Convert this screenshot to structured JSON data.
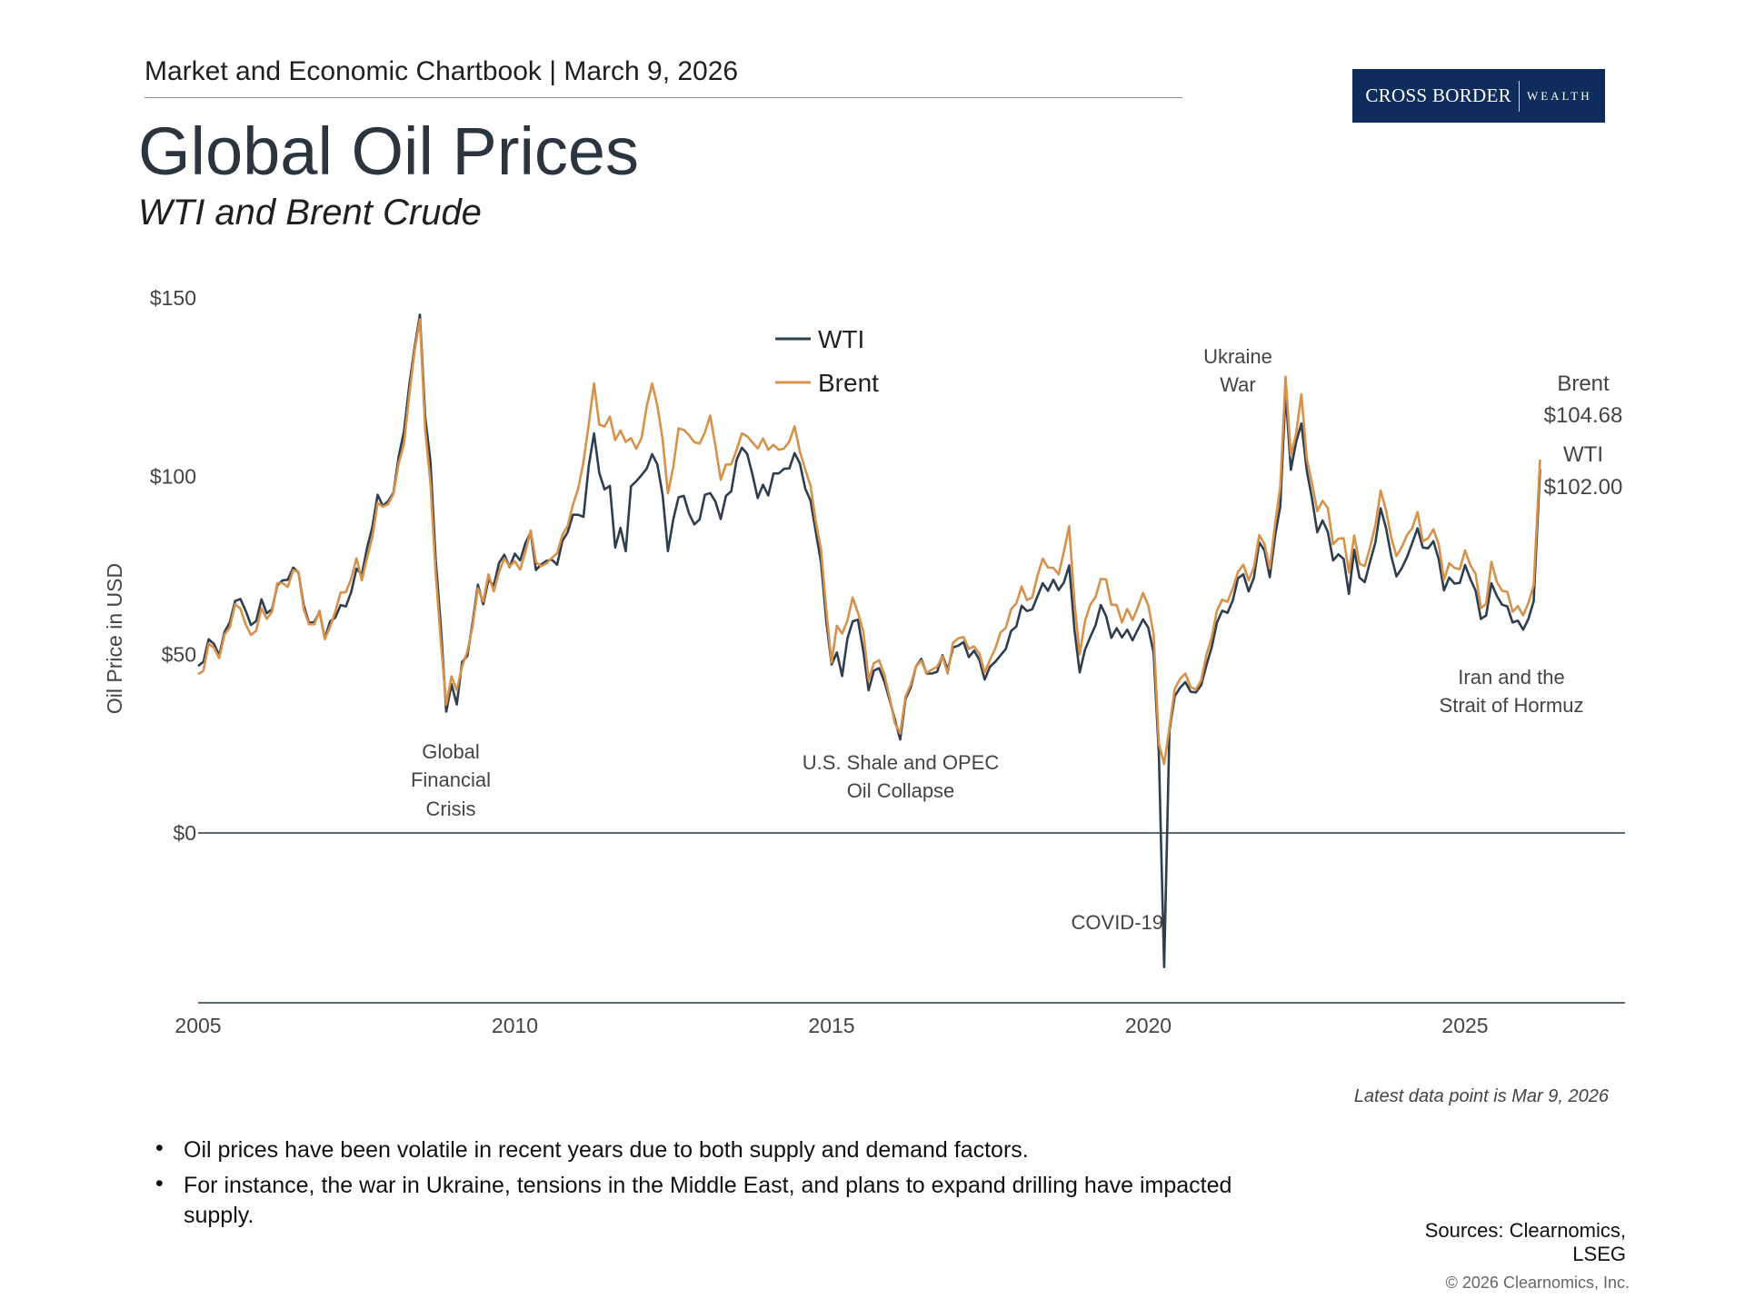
{
  "header": {
    "kicker": "Market and Economic Chartbook | March 9, 2026",
    "title": "Global Oil Prices",
    "subtitle": "WTI and Brent Crude"
  },
  "logo": {
    "text_main": "CROSS BORDER",
    "text_secondary": "WEALTH",
    "color": "#0f2d5c"
  },
  "chart_data": {
    "type": "line",
    "ylabel": "Oil Price in USD",
    "xlabel": "",
    "x_ticks": [
      "2005",
      "2010",
      "2015",
      "2020",
      "2025"
    ],
    "y_ticks": [
      "$0",
      "$50",
      "$100",
      "$150"
    ],
    "xlim": [
      2005,
      2027.6
    ],
    "ylim": [
      -47,
      150
    ],
    "grid": false,
    "legend": {
      "placement": "top-center",
      "entries": [
        "WTI",
        "Brent"
      ]
    },
    "frequency": "monthly",
    "series": [
      {
        "name": "WTI",
        "color": "#2e3e4e",
        "values_by_year": {
          "2005": [
            46.8,
            48.0,
            54.3,
            53.0,
            49.8,
            56.3,
            59.0,
            65.0,
            65.6,
            62.3,
            58.3,
            59.4
          ],
          "2006": [
            65.5,
            61.6,
            62.7,
            69.4,
            70.8,
            71.0,
            74.4,
            73.0,
            63.8,
            58.9,
            59.1,
            62.0
          ],
          "2007": [
            54.5,
            59.3,
            60.4,
            63.9,
            63.5,
            67.5,
            74.1,
            72.4,
            79.9,
            85.8,
            94.8,
            91.7
          ],
          "2008": [
            93.0,
            95.4,
            105.5,
            112.6,
            125.4,
            136.0,
            145.3,
            116.7,
            104.1,
            76.6,
            57.3,
            34.0
          ],
          "2009": [
            41.7,
            36.0,
            47.9,
            49.6,
            59.0,
            69.6,
            64.1,
            71.0,
            69.4,
            75.7,
            78.0,
            74.5
          ],
          "2010": [
            78.3,
            76.4,
            81.2,
            84.3,
            73.7,
            75.3,
            76.3,
            76.6,
            75.2,
            81.9,
            84.3,
            89.2
          ],
          "2011": [
            89.2,
            88.6,
            102.9,
            112.0,
            100.9,
            96.3,
            97.3,
            80.0,
            85.5,
            79.0,
            97.2,
            98.6
          ],
          "2012": [
            100.3,
            102.2,
            106.2,
            103.3,
            94.7,
            79.0,
            87.9,
            94.1,
            94.5,
            89.5,
            86.5,
            87.9
          ],
          "2013": [
            94.8,
            95.3,
            92.9,
            88.0,
            94.5,
            95.8,
            104.6,
            108.0,
            106.3,
            100.5,
            93.9,
            97.6
          ],
          "2014": [
            94.6,
            100.8,
            100.8,
            102.1,
            102.2,
            106.5,
            103.6,
            96.5,
            93.2,
            84.4,
            75.8,
            59.3
          ],
          "2015": [
            47.2,
            50.6,
            44.0,
            54.5,
            59.3,
            59.8,
            50.9,
            40.0,
            45.5,
            46.2,
            42.4,
            37.2
          ],
          "2016": [
            31.7,
            26.2,
            37.5,
            40.8,
            46.7,
            48.8,
            44.7,
            44.7,
            45.2,
            49.8,
            45.7,
            52.0
          ],
          "2017": [
            52.5,
            53.5,
            49.3,
            51.1,
            48.5,
            43.0,
            46.6,
            48.0,
            49.8,
            51.6,
            56.6,
            57.9
          ],
          "2018": [
            63.7,
            62.2,
            62.7,
            66.3,
            70.0,
            67.9,
            71.0,
            68.1,
            70.2,
            75.0,
            57.0,
            45.0
          ],
          "2019": [
            51.4,
            54.9,
            58.2,
            63.9,
            60.8,
            54.7,
            57.4,
            54.8,
            57.0,
            54.0,
            57.0,
            59.9
          ],
          "2020": [
            57.5,
            50.5,
            22.0,
            -37.6,
            28.6,
            38.3,
            40.7,
            42.3,
            39.6,
            39.4,
            41.4,
            47.0
          ],
          "2021": [
            52.0,
            59.0,
            62.3,
            61.7,
            65.2,
            71.4,
            72.5,
            67.7,
            71.6,
            81.5,
            79.2,
            71.7
          ],
          "2022": [
            83.2,
            91.6,
            123.7,
            101.8,
            109.6,
            114.8,
            101.6,
            93.7,
            84.3,
            87.6,
            84.4,
            76.4
          ],
          "2023": [
            78.1,
            76.8,
            67.0,
            79.4,
            71.6,
            70.3,
            76.1,
            81.4,
            91.0,
            85.6,
            77.7,
            71.9
          ],
          "2024": [
            74.2,
            77.3,
            81.3,
            85.4,
            80.0,
            79.8,
            81.8,
            76.7,
            68.0,
            71.6,
            69.9,
            70.1
          ],
          "2025": [
            75.1,
            71.2,
            67.9,
            60.0,
            61.0,
            70.0,
            66.5,
            64.0,
            63.5,
            59.0,
            59.5,
            57.0
          ],
          "2026": [
            60.0,
            65.0,
            102.0
          ]
        }
      },
      {
        "name": "Brent",
        "color": "#d6914b",
        "values_by_year": {
          "2005": [
            44.5,
            45.5,
            53.1,
            51.9,
            49.0,
            55.6,
            57.6,
            64.1,
            62.9,
            58.5,
            55.5,
            56.7
          ],
          "2006": [
            63.0,
            60.0,
            62.0,
            70.0,
            70.0,
            69.0,
            73.7,
            73.2,
            62.8,
            58.5,
            58.5,
            62.3
          ],
          "2007": [
            54.3,
            57.8,
            62.1,
            67.4,
            67.5,
            71.3,
            77.0,
            70.8,
            77.1,
            82.9,
            92.5,
            91.5
          ],
          "2008": [
            92.2,
            95.0,
            103.7,
            109.0,
            122.8,
            135.0,
            144.0,
            113.2,
            98.1,
            72.8,
            53.2,
            36.0
          ],
          "2009": [
            43.9,
            40.0,
            46.7,
            50.8,
            57.9,
            68.6,
            64.9,
            72.5,
            67.7,
            73.2,
            77.0,
            74.7
          ],
          "2010": [
            76.2,
            73.8,
            78.8,
            84.8,
            75.9,
            74.8,
            75.6,
            77.1,
            78.4,
            83.5,
            86.1,
            92.0
          ],
          "2011": [
            96.5,
            104.0,
            114.6,
            126.0,
            114.5,
            113.9,
            116.7,
            110.1,
            112.8,
            109.6,
            110.7,
            107.7
          ],
          "2012": [
            110.7,
            119.7,
            126.0,
            119.8,
            110.3,
            95.2,
            102.6,
            113.4,
            113.0,
            111.5,
            109.5,
            109.2
          ],
          "2013": [
            112.3,
            117.0,
            108.5,
            99.0,
            103.3,
            103.3,
            107.4,
            112.0,
            111.2,
            109.5,
            107.8,
            110.6
          ],
          "2014": [
            107.4,
            108.8,
            107.4,
            107.8,
            109.7,
            114.0,
            106.9,
            101.9,
            97.3,
            87.3,
            79.4,
            62.3
          ],
          "2015": [
            47.8,
            58.1,
            55.9,
            59.5,
            66.0,
            61.7,
            56.5,
            43.0,
            47.6,
            48.4,
            44.3,
            38.0
          ],
          "2016": [
            30.7,
            27.9,
            38.2,
            41.6,
            46.7,
            48.3,
            44.9,
            45.8,
            46.6,
            49.5,
            44.7,
            53.3
          ],
          "2017": [
            54.6,
            54.9,
            51.6,
            52.3,
            50.3,
            45.0,
            48.5,
            51.7,
            56.2,
            57.5,
            62.7,
            64.4
          ],
          "2018": [
            69.1,
            65.3,
            66.0,
            72.1,
            76.9,
            74.4,
            74.3,
            72.5,
            78.9,
            86.0,
            64.8,
            50.0
          ],
          "2019": [
            59.4,
            64.0,
            66.1,
            71.2,
            71.1,
            64.0,
            63.9,
            59.0,
            62.8,
            59.7,
            63.2,
            67.3
          ],
          "2020": [
            63.7,
            55.7,
            25.0,
            19.3,
            29.4,
            40.3,
            43.2,
            44.7,
            40.9,
            40.2,
            42.7,
            49.9
          ],
          "2021": [
            54.8,
            62.3,
            65.4,
            64.8,
            68.5,
            73.2,
            75.2,
            70.8,
            74.5,
            83.5,
            81.0,
            74.2
          ],
          "2022": [
            86.5,
            97.1,
            127.9,
            105.8,
            111.9,
            123.0,
            105.0,
            98.0,
            90.2,
            93.1,
            91.1,
            80.9
          ],
          "2023": [
            82.5,
            82.6,
            73.0,
            83.4,
            75.5,
            74.8,
            80.1,
            86.2,
            96.0,
            90.6,
            82.9,
            77.6
          ],
          "2024": [
            80.1,
            83.5,
            85.4,
            90.0,
            81.8,
            82.6,
            85.1,
            80.9,
            71.0,
            75.6,
            74.3,
            73.9
          ],
          "2025": [
            79.2,
            75.1,
            72.6,
            63.0,
            64.2,
            76.0,
            70.4,
            67.9,
            67.6,
            62.0,
            63.6,
            61.0
          ],
          "2026": [
            64.5,
            69.5,
            104.68
          ]
        }
      }
    ],
    "annotations": [
      {
        "lines": [
          "Global",
          "Financial",
          "Crisis"
        ]
      },
      {
        "lines": [
          "U.S. Shale and OPEC",
          "Oil Collapse"
        ]
      },
      {
        "lines": [
          "COVID-19"
        ]
      },
      {
        "lines": [
          "Ukraine",
          "War"
        ]
      },
      {
        "lines": [
          "Iran and the",
          "Strait of Hormuz"
        ]
      }
    ],
    "end_labels": {
      "brent_name": "Brent",
      "brent_value": "$104.68",
      "wti_name": "WTI",
      "wti_value": "$102.00"
    }
  },
  "footer": {
    "latest": "Latest data point is Mar 9, 2026",
    "bullets": [
      "Oil prices have been volatile in recent years due to both supply and demand factors.",
      "For instance, the war in Ukraine, tensions in the Middle East, and plans to expand drilling have impacted supply."
    ],
    "bullet_symbol": "•",
    "sources": [
      "Sources: Clearnomics,",
      "LSEG"
    ],
    "copyright": "© 2026 Clearnomics, Inc."
  }
}
